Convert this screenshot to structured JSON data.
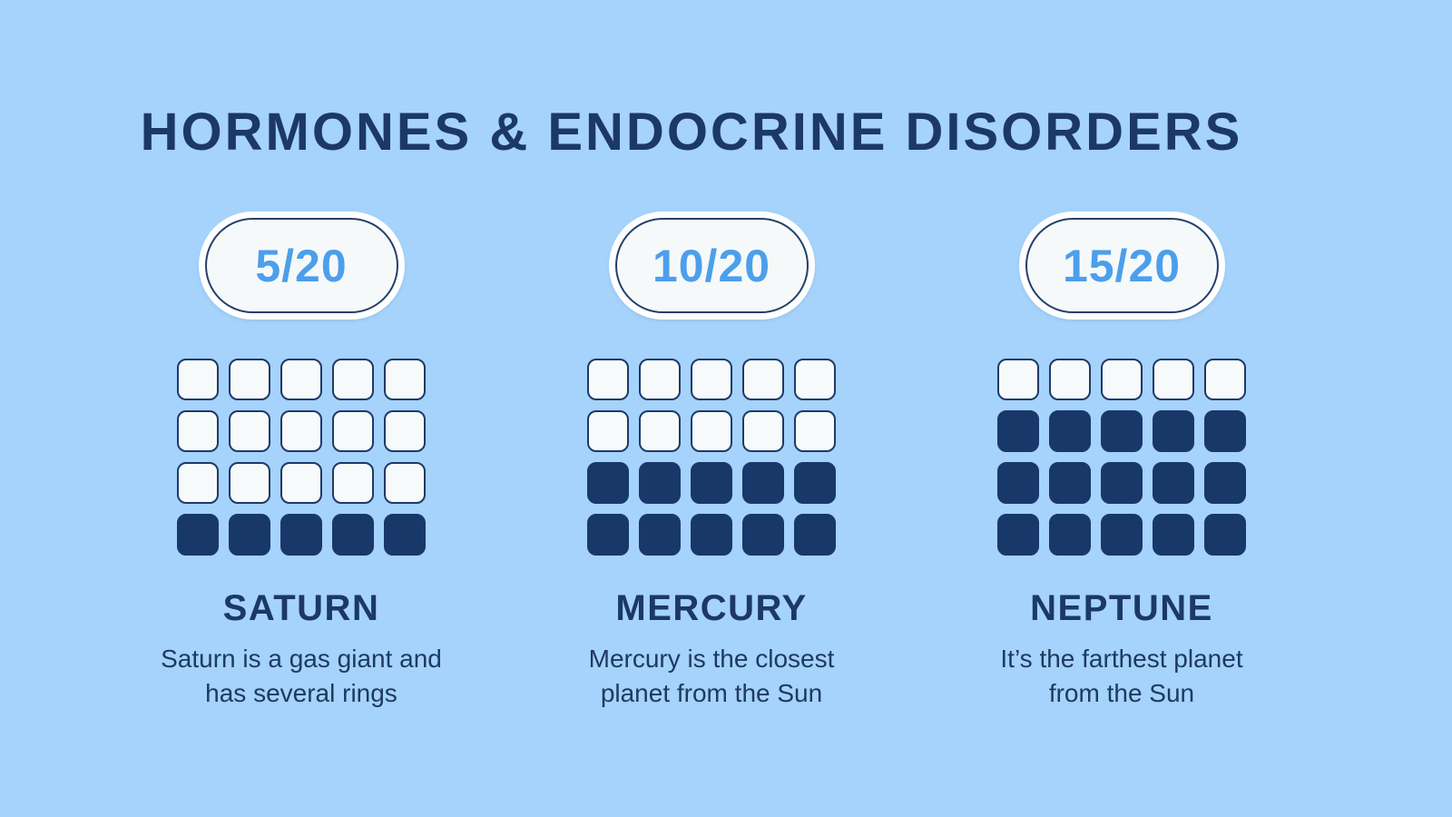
{
  "title": "HORMONES & ENDOCRINE DISORDERS",
  "colors": {
    "background": "#A5D3FB",
    "navy": "#1C3867",
    "score_blue": "#4C9FEC",
    "card_fill": "#F6F9FA",
    "description_navy": "#1E3A61"
  },
  "columns": [
    {
      "score": "5/20",
      "name": "SATURN",
      "description": "Saturn is a gas giant and\nhas several rings",
      "filled": 5,
      "total": 20
    },
    {
      "score": "10/20",
      "name": "MERCURY",
      "description": "Mercury is the closest\nplanet from the Sun",
      "filled": 10,
      "total": 20
    },
    {
      "score": "15/20",
      "name": "NEPTUNE",
      "description": "It’s the farthest planet\nfrom the Sun",
      "filled": 15,
      "total": 20
    }
  ],
  "chart_data": {
    "type": "waffle",
    "title": "HORMONES & ENDOCRINE DISORDERS",
    "categories": [
      "SATURN",
      "MERCURY",
      "NEPTUNE"
    ],
    "values": [
      5,
      10,
      15
    ],
    "total_per_category": 20,
    "value_labels": [
      "5/20",
      "10/20",
      "15/20"
    ],
    "grid": {
      "rows": 4,
      "cols": 5,
      "fill_direction": "bottom-up"
    },
    "annotations": [
      "Saturn is a gas giant and has several rings",
      "Mercury is the closest planet from the Sun",
      "It’s the farthest planet from the Sun"
    ],
    "legend_position": "none"
  }
}
